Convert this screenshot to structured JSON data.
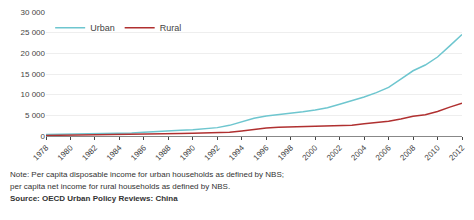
{
  "chart_data": {
    "type": "line",
    "x": [
      1978,
      1979,
      1980,
      1981,
      1982,
      1983,
      1984,
      1985,
      1986,
      1987,
      1988,
      1989,
      1990,
      1991,
      1992,
      1993,
      1994,
      1995,
      1996,
      1997,
      1998,
      1999,
      2000,
      2001,
      2002,
      2003,
      2004,
      2005,
      2006,
      2007,
      2008,
      2009,
      2010,
      2011,
      2012
    ],
    "series": [
      {
        "name": "Urban",
        "color": "#6ec6cf",
        "values": [
          343,
          387,
          477,
          500,
          535,
          572,
          652,
          739,
          900,
          1002,
          1181,
          1375,
          1510,
          1700,
          2026,
          2577,
          3496,
          4283,
          4839,
          5160,
          5425,
          5854,
          6280,
          6860,
          7703,
          8472,
          9422,
          10493,
          11759,
          13786,
          15781,
          17175,
          19109,
          21810,
          24565
        ]
      },
      {
        "name": "Rural",
        "color": "#b03030",
        "values": [
          134,
          160,
          191,
          223,
          270,
          310,
          355,
          398,
          424,
          463,
          545,
          602,
          686,
          709,
          784,
          922,
          1221,
          1578,
          1926,
          2090,
          2162,
          2210,
          2253,
          2366,
          2476,
          2622,
          2936,
          3255,
          3587,
          4140,
          4761,
          5153,
          5919,
          6977,
          7917
        ]
      }
    ],
    "xlim": [
      1978,
      2012
    ],
    "xticks": [
      1978,
      1980,
      1982,
      1984,
      1986,
      1988,
      1990,
      1992,
      1994,
      1996,
      1998,
      2000,
      2002,
      2004,
      2006,
      2008,
      2010,
      2012
    ],
    "ylim": [
      0,
      30000
    ],
    "yticks": [
      0,
      {
        "value": 5000,
        "label": "5 000"
      },
      {
        "value": 10000,
        "label": "10 000"
      },
      {
        "value": 15000,
        "label": "15 000"
      },
      {
        "value": 20000,
        "label": "20 000"
      },
      {
        "value": 25000,
        "label": "25 000"
      },
      {
        "value": 30000,
        "label": "30 000"
      }
    ],
    "grid": true,
    "legend": "upper left",
    "annotations": [
      "Note: Per capita disposable income for urban households as defined by NBS;",
      "per capita net income for rural households as defined by NBS.",
      "Source: OECD Urban Policy Reviews: China"
    ]
  }
}
